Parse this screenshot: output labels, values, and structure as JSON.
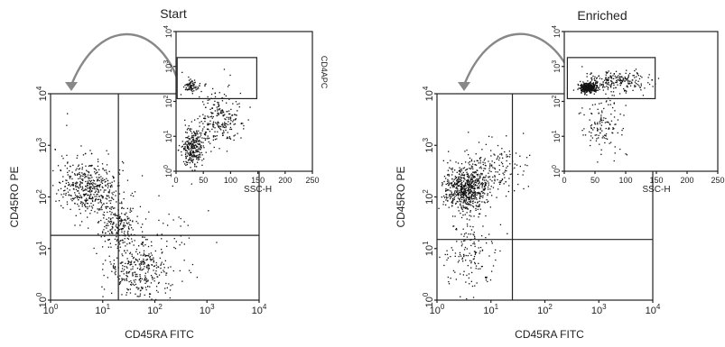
{
  "chart_data": [
    {
      "id": "start-main",
      "type": "scatter",
      "xlabel": "CD45RA FITC",
      "ylabel": "CD45RO PE",
      "xscale": "log",
      "yscale": "log",
      "xlim": [
        1,
        10000
      ],
      "ylim": [
        1,
        10000
      ],
      "xticks": [
        {
          "b": "10",
          "e": "0"
        },
        {
          "b": "10",
          "e": "1"
        },
        {
          "b": "10",
          "e": "2"
        },
        {
          "b": "10",
          "e": "3"
        },
        {
          "b": "10",
          "e": "4"
        }
      ],
      "yticks": [
        {
          "b": "10",
          "e": "0"
        },
        {
          "b": "10",
          "e": "1"
        },
        {
          "b": "10",
          "e": "2"
        },
        {
          "b": "10",
          "e": "3"
        },
        {
          "b": "10",
          "e": "4"
        }
      ],
      "quadrant_lines": {
        "x": 20,
        "y": 18
      },
      "populations": [
        {
          "cx": 6,
          "cy": 150,
          "sx": 0.28,
          "sy": 0.25,
          "n": 420
        },
        {
          "cx": 18,
          "cy": 30,
          "sx": 0.18,
          "sy": 0.22,
          "n": 200
        },
        {
          "cx": 50,
          "cy": 4,
          "sx": 0.3,
          "sy": 0.28,
          "n": 330
        },
        {
          "cx": 2.5,
          "cy": 300,
          "sx": 0.35,
          "sy": 0.35,
          "n": 60
        },
        {
          "cx": 150,
          "cy": 20,
          "sx": 0.45,
          "sy": 0.5,
          "n": 50
        }
      ]
    },
    {
      "id": "start-inset",
      "type": "scatter",
      "title": "Start",
      "xlabel": "SSC-H",
      "ylabel": "CD4APC",
      "xscale": "linear",
      "yscale": "log",
      "xlim": [
        0,
        250
      ],
      "ylim": [
        1,
        10000
      ],
      "xticks": [
        "0",
        "50",
        "100",
        "150",
        "200",
        "250"
      ],
      "yticks": [
        {
          "b": "10",
          "e": "0"
        },
        {
          "b": "10",
          "e": "1"
        },
        {
          "b": "10",
          "e": "2"
        },
        {
          "b": "10",
          "e": "3"
        },
        {
          "b": "10",
          "e": "4"
        }
      ],
      "gate": {
        "x0": 2,
        "x1": 148,
        "y0": 120,
        "y1": 1800
      },
      "populations": [
        {
          "cx": 28,
          "cy": 280,
          "sx": 6,
          "sy": 0.1,
          "n": 70
        },
        {
          "cx": 30,
          "cy": 5,
          "sx": 9,
          "sy": 0.3,
          "n": 280
        },
        {
          "cx": 80,
          "cy": 30,
          "sx": 20,
          "sy": 0.35,
          "n": 230
        },
        {
          "cx": 50,
          "cy": 300,
          "sx": 25,
          "sy": 0.3,
          "n": 12
        }
      ]
    },
    {
      "id": "enriched-main",
      "type": "scatter",
      "xlabel": "CD45RA FITC",
      "ylabel": "CD45RO PE",
      "xscale": "log",
      "yscale": "log",
      "xlim": [
        1,
        10000
      ],
      "ylim": [
        1,
        10000
      ],
      "xticks": [
        {
          "b": "10",
          "e": "0"
        },
        {
          "b": "10",
          "e": "1"
        },
        {
          "b": "10",
          "e": "2"
        },
        {
          "b": "10",
          "e": "3"
        },
        {
          "b": "10",
          "e": "4"
        }
      ],
      "yticks": [
        {
          "b": "10",
          "e": "0"
        },
        {
          "b": "10",
          "e": "1"
        },
        {
          "b": "10",
          "e": "2"
        },
        {
          "b": "10",
          "e": "3"
        },
        {
          "b": "10",
          "e": "4"
        }
      ],
      "quadrant_lines": {
        "x": 25,
        "y": 15
      },
      "populations": [
        {
          "cx": 3.5,
          "cy": 150,
          "sx": 0.2,
          "sy": 0.22,
          "n": 650
        },
        {
          "cx": 12,
          "cy": 400,
          "sx": 0.3,
          "sy": 0.25,
          "n": 150
        },
        {
          "cx": 4,
          "cy": 8,
          "sx": 0.25,
          "sy": 0.4,
          "n": 150
        }
      ]
    },
    {
      "id": "enriched-inset",
      "type": "scatter",
      "title": "Enriched",
      "xlabel": "SSC-H",
      "ylabel": "CD4APC",
      "xscale": "linear",
      "yscale": "log",
      "xlim": [
        0,
        250
      ],
      "ylim": [
        1,
        10000
      ],
      "xticks": [
        "0",
        "50",
        "100",
        "150",
        "200",
        "250"
      ],
      "yticks": [
        {
          "b": "10",
          "e": "0"
        },
        {
          "b": "10",
          "e": "1"
        },
        {
          "b": "10",
          "e": "2"
        },
        {
          "b": "10",
          "e": "3"
        },
        {
          "b": "10",
          "e": "4"
        }
      ],
      "gate": {
        "x0": 5,
        "x1": 148,
        "y0": 120,
        "y1": 1800
      },
      "populations": [
        {
          "cx": 38,
          "cy": 250,
          "sx": 7,
          "sy": 0.07,
          "n": 330
        },
        {
          "cx": 85,
          "cy": 400,
          "sx": 25,
          "sy": 0.14,
          "n": 220
        },
        {
          "cx": 60,
          "cy": 20,
          "sx": 18,
          "sy": 0.4,
          "n": 130
        }
      ]
    }
  ],
  "colors": {
    "dots": "#111111",
    "axes": "#222222",
    "arrow": "#888888"
  }
}
